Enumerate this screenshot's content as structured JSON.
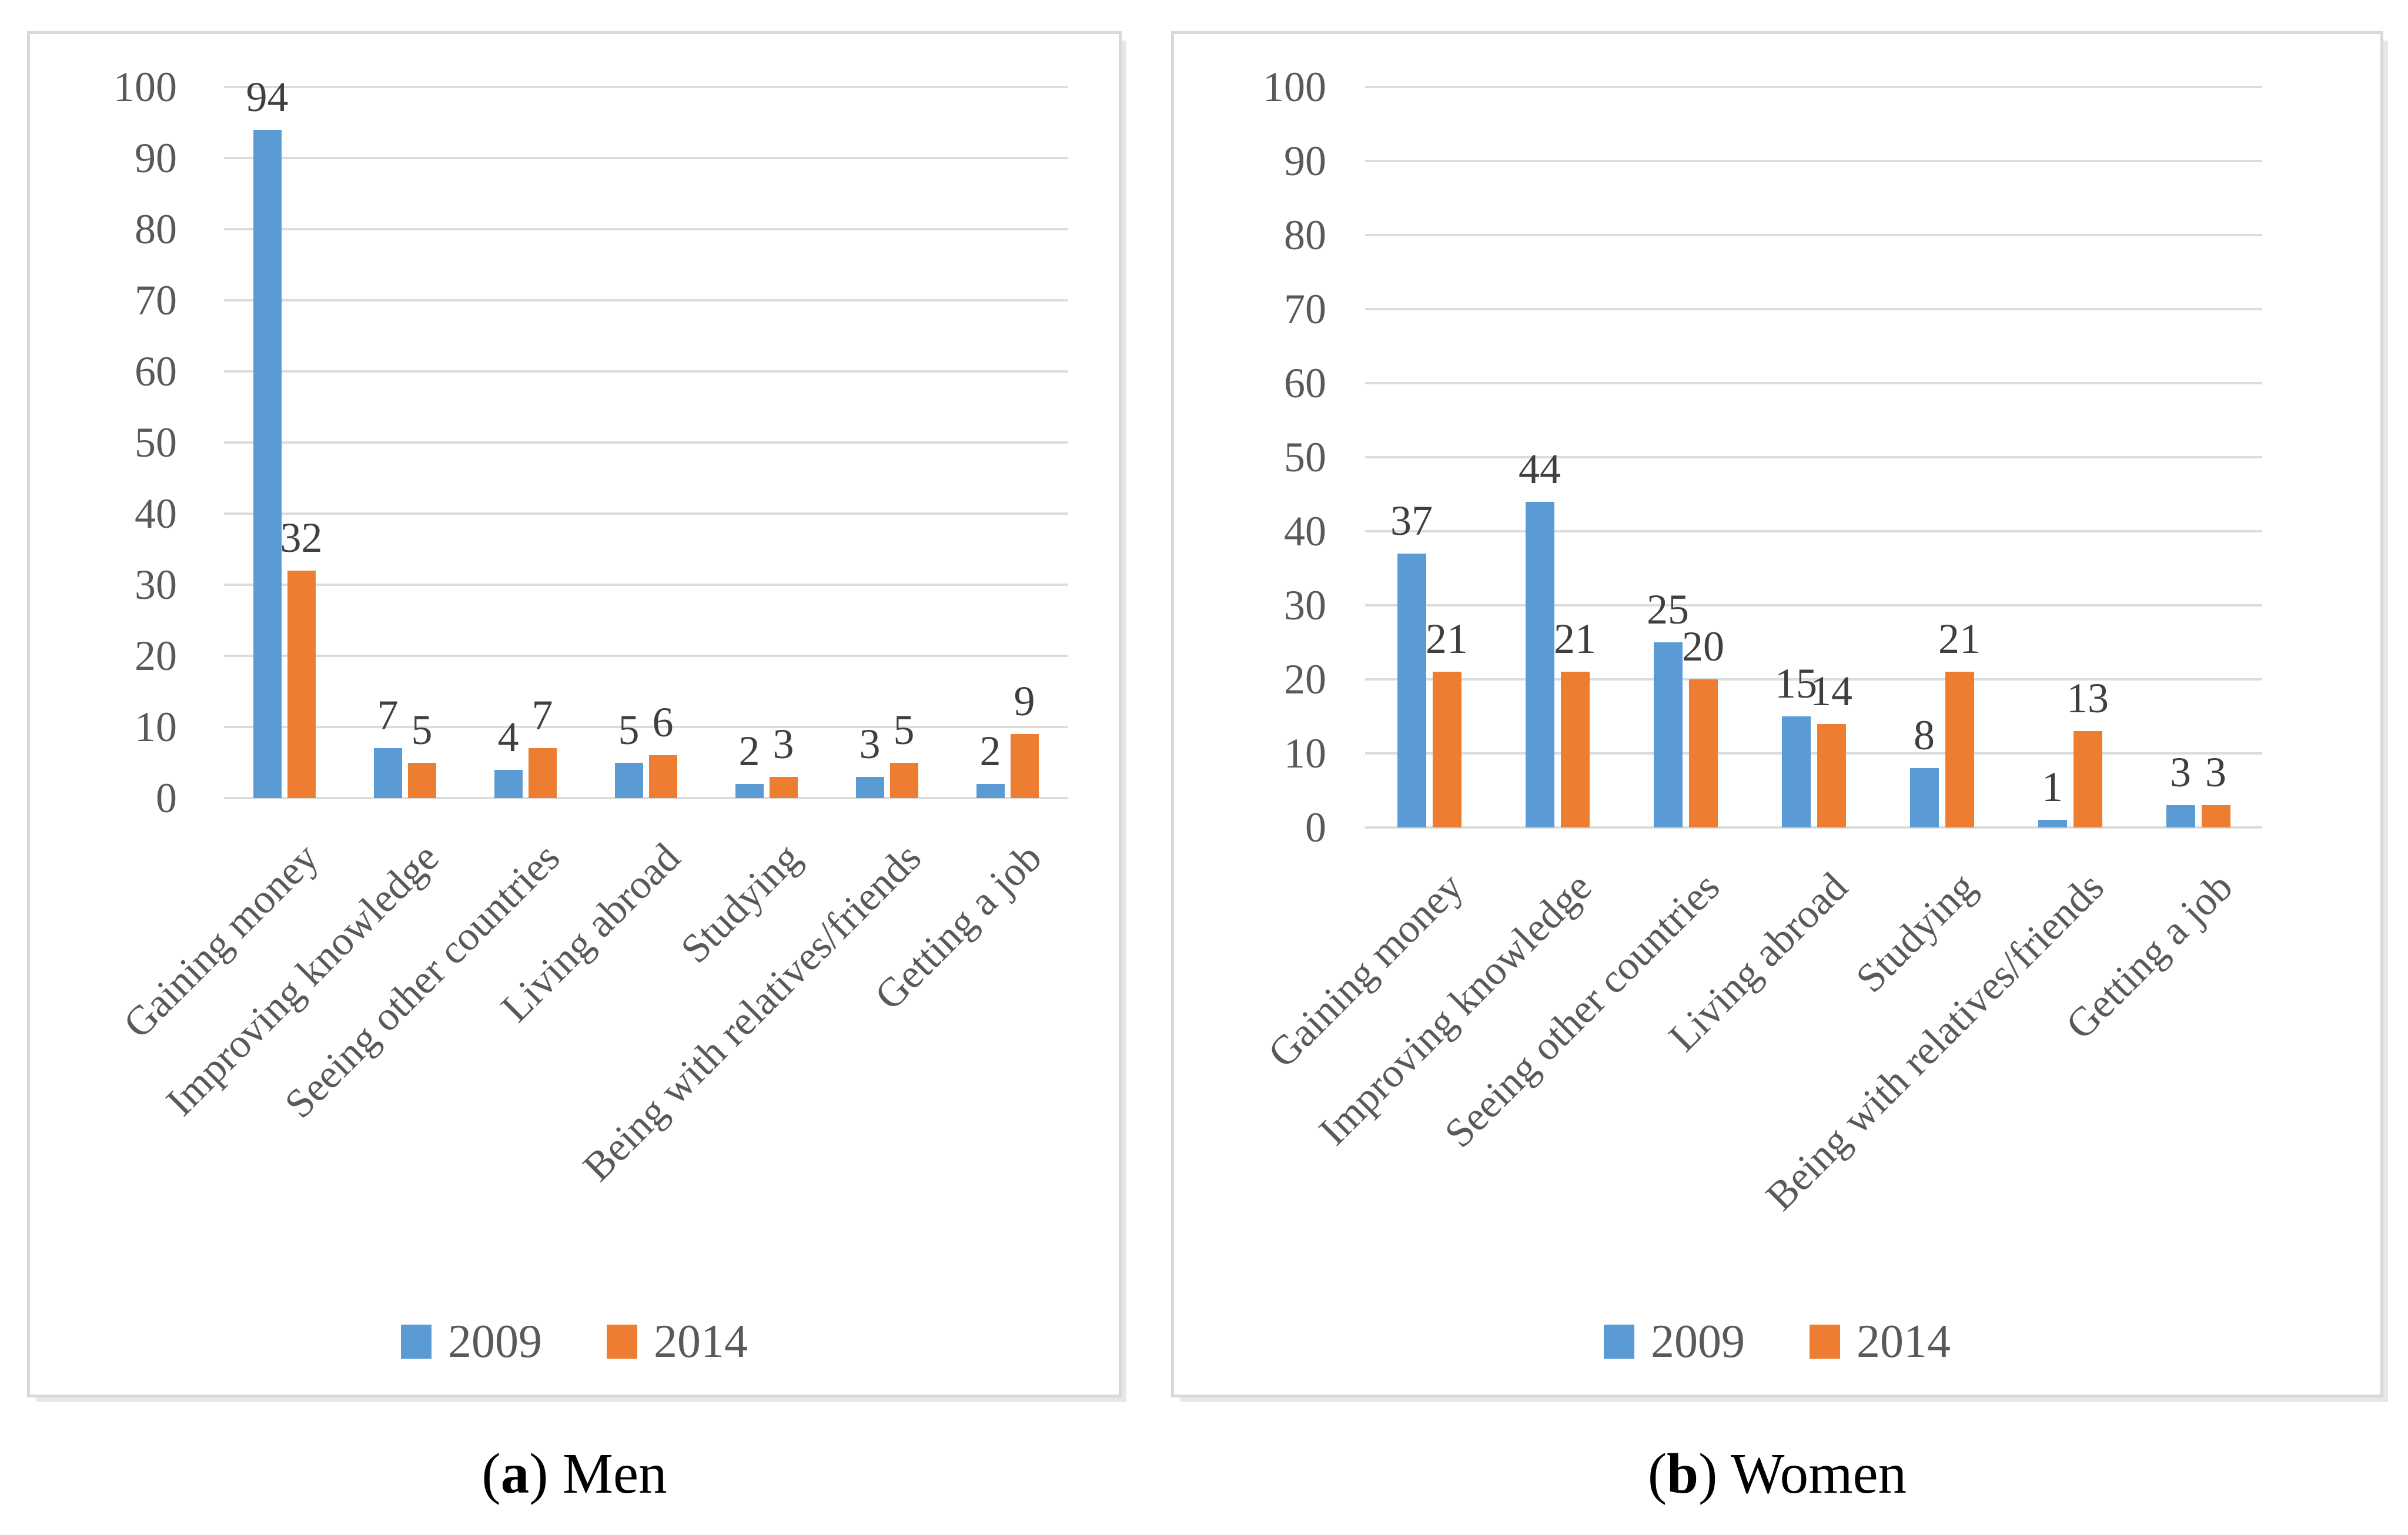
{
  "colors": {
    "series_2009": "#5B9BD5",
    "series_2014": "#ED7D31",
    "gridline": "#DCDCDC",
    "axis_text": "#595959",
    "data_label": "#3F3F3F",
    "panel_border": "#D9D9D9"
  },
  "legend": {
    "items": [
      {
        "label": "2009",
        "color": "#5B9BD5"
      },
      {
        "label": "2014",
        "color": "#ED7D31"
      }
    ]
  },
  "captions": {
    "a": {
      "open": "(",
      "bold": "a",
      "close": ") ",
      "text": "Men"
    },
    "b": {
      "open": "(",
      "bold": "b",
      "close": ") ",
      "text": "Women"
    }
  },
  "chart_data": [
    {
      "id": "men",
      "type": "bar",
      "title": "(a) Men",
      "categories": [
        "Gaining money",
        "Improving knowledge",
        "Seeing other countries",
        "Living abroad",
        "Studying",
        "Being with relatives/friends",
        "Getting a job"
      ],
      "series": [
        {
          "name": "2009",
          "color": "#5B9BD5",
          "values": [
            94,
            7,
            4,
            5,
            2,
            3,
            2
          ]
        },
        {
          "name": "2014",
          "color": "#ED7D31",
          "values": [
            32,
            5,
            7,
            6,
            3,
            5,
            9
          ]
        }
      ],
      "xlabel": "",
      "ylabel": "",
      "ylim": [
        0,
        100
      ],
      "ytick_step": 10,
      "grid": true,
      "data_labels": true,
      "legend_position": "bottom"
    },
    {
      "id": "women",
      "type": "bar",
      "title": "(b) Women",
      "categories": [
        "Gaining money",
        "Improving knowledge",
        "Seeing other countries",
        "Living abroad",
        "Studying",
        "Being with relatives/friends",
        "Getting a job"
      ],
      "series": [
        {
          "name": "2009",
          "color": "#5B9BD5",
          "values": [
            37,
            44,
            25,
            15,
            8,
            1,
            3
          ]
        },
        {
          "name": "2014",
          "color": "#ED7D31",
          "values": [
            21,
            21,
            20,
            14,
            21,
            13,
            3
          ]
        }
      ],
      "xlabel": "",
      "ylabel": "",
      "ylim": [
        0,
        100
      ],
      "ytick_step": 10,
      "grid": true,
      "data_labels": true,
      "legend_position": "bottom"
    }
  ]
}
